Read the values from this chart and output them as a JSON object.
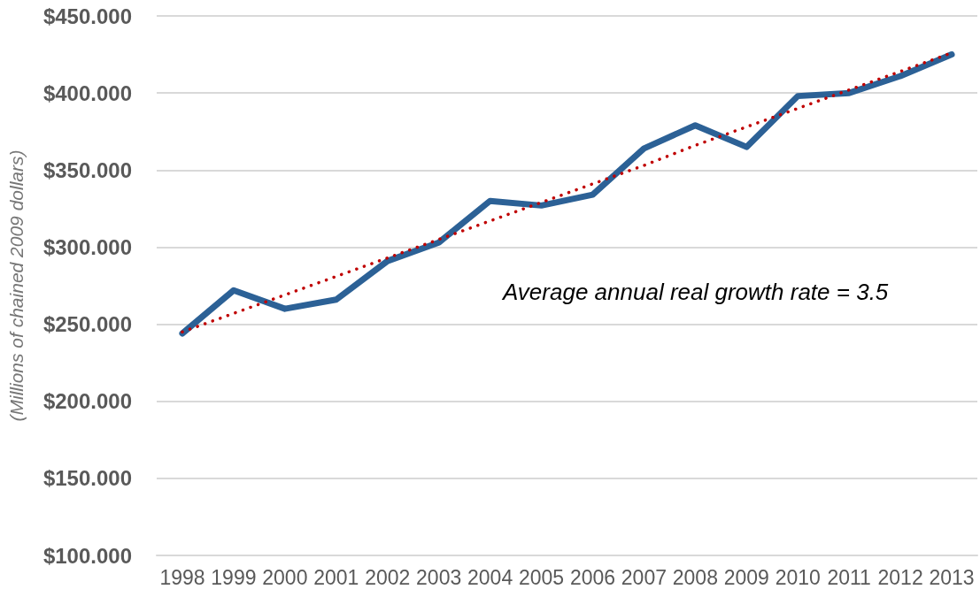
{
  "chart_data": {
    "type": "line",
    "ylabel": "(Millions of chained 2009 dollars)",
    "annotations": [
      "Average annual real growth rate = 3.5"
    ],
    "categories": [
      "1998",
      "1999",
      "2000",
      "2001",
      "2002",
      "2003",
      "2004",
      "2005",
      "2006",
      "2007",
      "2008",
      "2009",
      "2010",
      "2011",
      "2012",
      "2013"
    ],
    "series": [
      {
        "color": "#2c6196",
        "line_style": "solid",
        "values": [
          244,
          272,
          260,
          266,
          291,
          303,
          330,
          327,
          334,
          364,
          379,
          365,
          398,
          400,
          411,
          425
        ]
      },
      {
        "type": "line",
        "color": "#c00000",
        "line_style": "dotted",
        "values": [
          245,
          257,
          269,
          281,
          293,
          305,
          317,
          329,
          341,
          353,
          366,
          378,
          390,
          402,
          414,
          426
        ]
      }
    ],
    "ylim": [
      100,
      450
    ],
    "yticks": [
      {
        "value": 100,
        "label": "$100.000"
      },
      {
        "value": 150,
        "label": "$150.000"
      },
      {
        "value": 200,
        "label": "$200.000"
      },
      {
        "value": 250,
        "label": "$250.000"
      },
      {
        "value": 300,
        "label": "$300.000"
      },
      {
        "value": 350,
        "label": "$350.000"
      },
      {
        "value": 400,
        "label": "$400.000"
      },
      {
        "value": 450,
        "label": "$450.000"
      }
    ],
    "grid": "y",
    "marker": "none"
  }
}
